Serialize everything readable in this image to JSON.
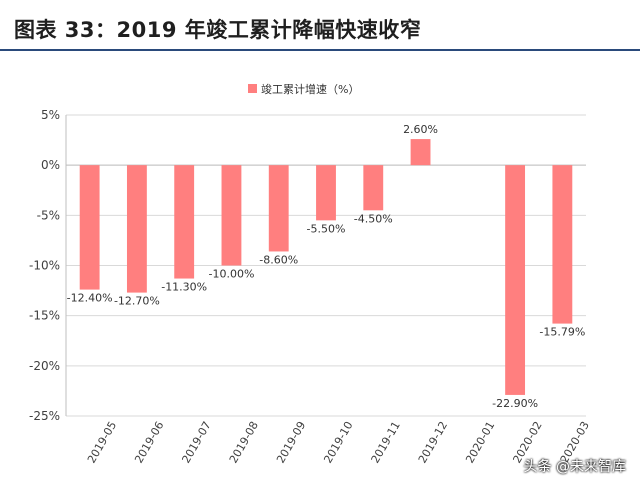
{
  "header": {
    "title": "图表 33：2019 年竣工累计降幅快速收窄"
  },
  "watermark": "头条 @未来智库",
  "chart_data": {
    "type": "bar",
    "categories": [
      "2019-05",
      "2019-06",
      "2019-07",
      "2019-08",
      "2019-09",
      "2019-10",
      "2019-11",
      "2019-12",
      "2020-01",
      "2020-02",
      "2020-03"
    ],
    "series": [
      {
        "name": "竣工累计增速（%）",
        "values": [
          -12.4,
          -12.7,
          -11.3,
          -10.0,
          -8.6,
          -5.5,
          -4.5,
          2.6,
          null,
          -22.9,
          -15.79
        ]
      }
    ],
    "data_labels": [
      "-12.40%",
      "-12.70%",
      "-11.30%",
      "-10.00%",
      "-8.60%",
      "-5.50%",
      "-4.50%",
      "2.60%",
      "",
      "-22.90%",
      "-15.79%"
    ],
    "y_ticks": [
      5,
      0,
      -5,
      -10,
      -15,
      -20,
      -25
    ],
    "y_tick_labels": [
      "5%",
      "0%",
      "-5%",
      "-10%",
      "-15%",
      "-20%",
      "-25%"
    ],
    "ylim": [
      -25,
      5
    ],
    "legend_position": "top",
    "grid": true,
    "bar_color": "#ff7f7f",
    "title": "",
    "xlabel": "",
    "ylabel": ""
  }
}
